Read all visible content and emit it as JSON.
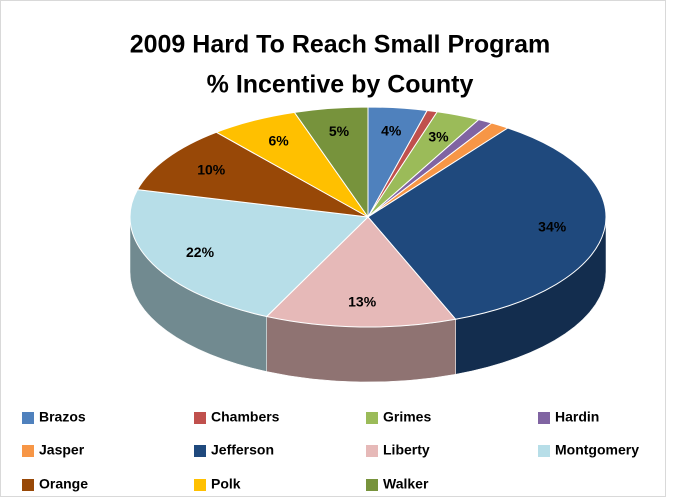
{
  "chart_data": {
    "type": "pie3d",
    "title_lines": [
      "2009 Hard To Reach Small Program",
      "% Incentive by County"
    ],
    "categories": [
      "Brazos",
      "Chambers",
      "Grimes",
      "Hardin",
      "Jasper",
      "Jefferson",
      "Liberty",
      "Montgomery",
      "Orange",
      "Polk",
      "Walker"
    ],
    "values": [
      4,
      0.7,
      3,
      1,
      1.3,
      34,
      13,
      22,
      10,
      6,
      5
    ],
    "value_labels": [
      "4%",
      null,
      "3%",
      null,
      null,
      "34%",
      "13%",
      "22%",
      "10%",
      "6%",
      "5%"
    ],
    "colors": [
      "#4f81bd",
      "#c0504d",
      "#9bbb59",
      "#8064a2",
      "#f79646",
      "#1f497d",
      "#e6b9b8",
      "#b7dee8",
      "#984807",
      "#ffc000",
      "#77933c"
    ],
    "legend": "bottom"
  }
}
